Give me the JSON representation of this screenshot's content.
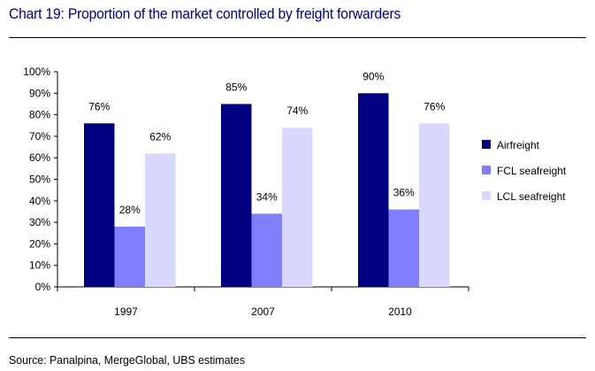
{
  "title": "Chart 19: Proportion of the market controlled by freight forwarders",
  "source": "Source: Panalpina, MergeGlobal, UBS estimates",
  "colors": {
    "title": "#000080",
    "Airfreight": "#000080",
    "FCL seafreight": "#8080FF",
    "LCL seafreight": "#D9D9FF"
  },
  "chart_data": {
    "type": "bar",
    "categories": [
      "1997",
      "2007",
      "2010"
    ],
    "series": [
      {
        "name": "Airfreight",
        "values": [
          76,
          85,
          90
        ]
      },
      {
        "name": "FCL seafreight",
        "values": [
          28,
          34,
          36
        ]
      },
      {
        "name": "LCL seafreight",
        "values": [
          62,
          74,
          76
        ]
      }
    ],
    "data_labels": [
      [
        "76%",
        "85%",
        "90%"
      ],
      [
        "28%",
        "34%",
        "36%"
      ],
      [
        "62%",
        "74%",
        "76%"
      ]
    ],
    "ylim": [
      0,
      100
    ],
    "yticks": [
      "0%",
      "10%",
      "20%",
      "30%",
      "40%",
      "50%",
      "60%",
      "70%",
      "80%",
      "90%",
      "100%"
    ],
    "xlabel": "",
    "ylabel": "",
    "grid": false,
    "legend": "right"
  }
}
